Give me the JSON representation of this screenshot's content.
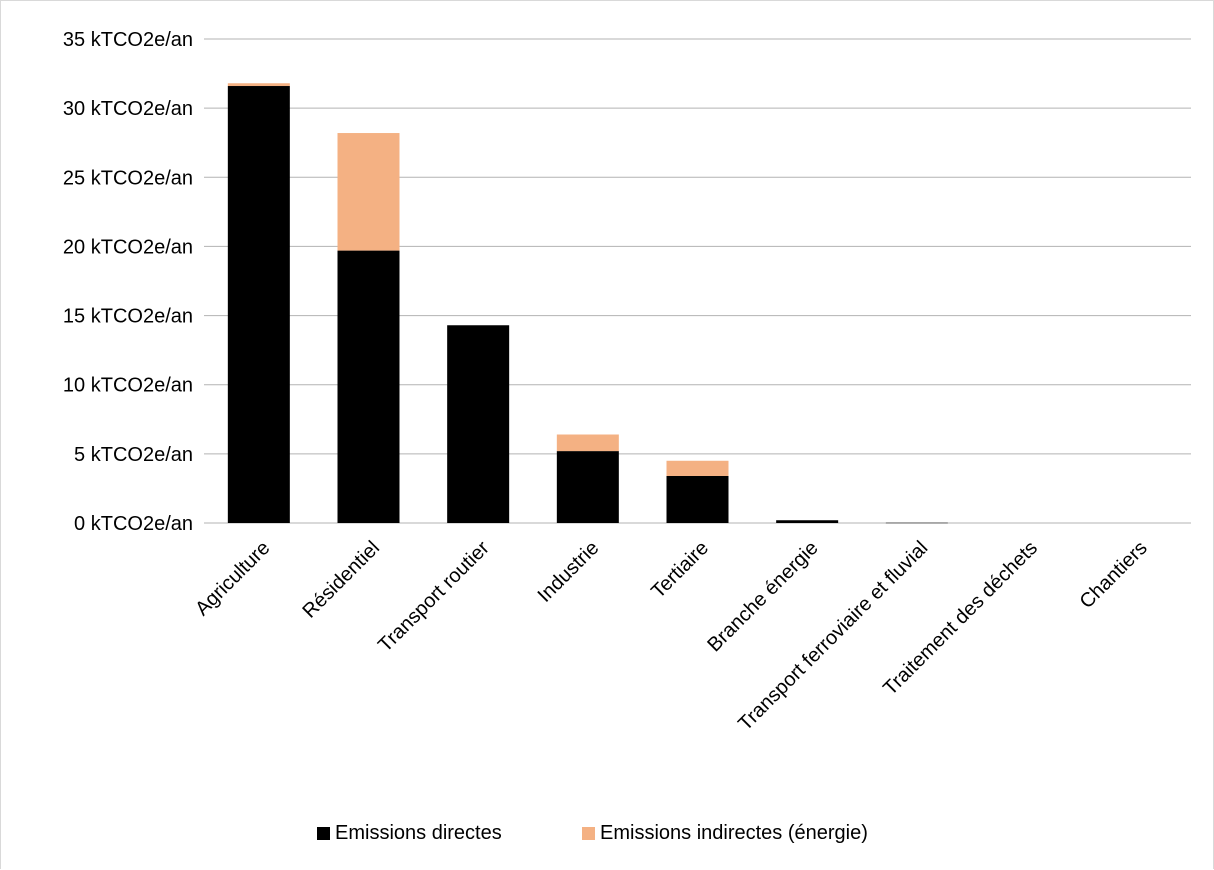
{
  "chart_data": {
    "type": "bar",
    "stacked": true,
    "title": "",
    "xlabel": "",
    "ylabel": "",
    "ylim": [
      0,
      35
    ],
    "y_ticks": [
      0,
      5,
      10,
      15,
      20,
      25,
      30,
      35
    ],
    "y_tick_labels": [
      "0 kTCO2e/an",
      "5 kTCO2e/an",
      "10 kTCO2e/an",
      "15 kTCO2e/an",
      "20 kTCO2e/an",
      "25 kTCO2e/an",
      "30 kTCO2e/an",
      "35 kTCO2e/an"
    ],
    "grid": true,
    "legend_position": "bottom",
    "categories": [
      "Agriculture",
      "Résidentiel",
      "Transport routier",
      "Industrie",
      "Tertiaire",
      "Branche énergie",
      "Transport ferroviaire et fluvial",
      "Traitement des déchets",
      "Chantiers"
    ],
    "series": [
      {
        "name": "Emissions directes",
        "color": "#000000",
        "values": [
          31.6,
          19.7,
          14.3,
          5.2,
          3.4,
          0.2,
          0.02,
          0.0,
          0.0
        ]
      },
      {
        "name": "Emissions indirectes (énergie)",
        "color": "#f4b183",
        "values": [
          0.2,
          8.5,
          0.0,
          1.2,
          1.1,
          0.0,
          0.0,
          0.0,
          0.0
        ]
      }
    ]
  }
}
